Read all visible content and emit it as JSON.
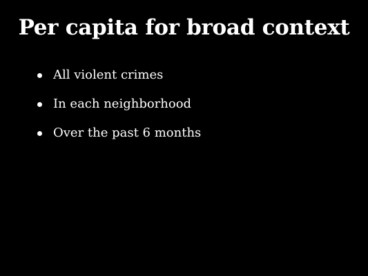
{
  "slide": {
    "title": "Per capita for broad context",
    "bullets": [
      "All violent crimes",
      "In each neighborhood",
      "Over the past 6 months"
    ]
  },
  "colors": {
    "background": "#000000",
    "text": "#ffffff"
  }
}
